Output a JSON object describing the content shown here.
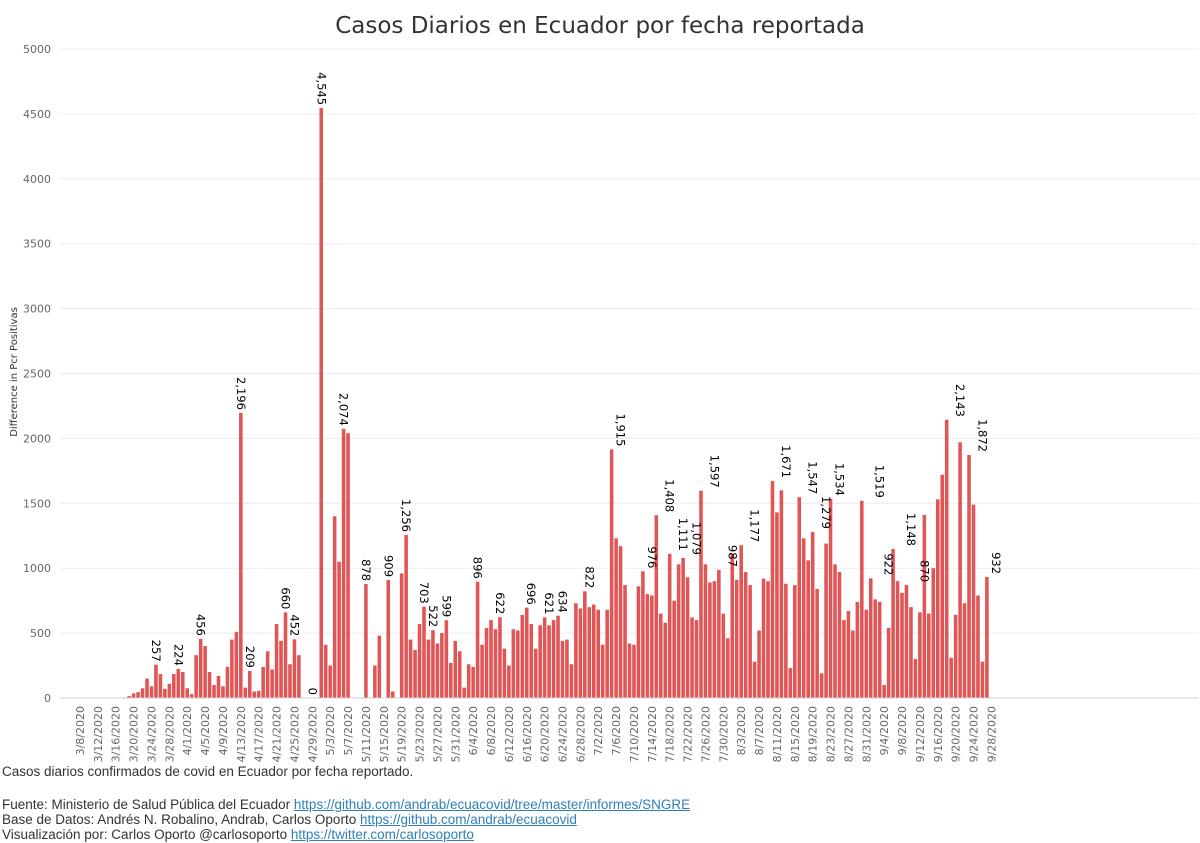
{
  "chart_data": {
    "type": "bar",
    "title": "Casos Diarios en Ecuador por fecha reportada",
    "ylabel": "Difference in Pcr Positivas",
    "xlabel": "",
    "ylim": [
      0,
      5000
    ],
    "yticks": [
      0,
      500,
      1000,
      1500,
      2000,
      2500,
      3000,
      3500,
      4000,
      4500,
      5000
    ],
    "start_date": "2020-03-08",
    "end_date": "2020-09-28",
    "bar_color": "#e05555",
    "x_tick_labels": [
      "3/8/2020",
      "3/12/2020",
      "3/16/2020",
      "3/20/2020",
      "3/24/2020",
      "3/28/2020",
      "4/1/2020",
      "4/5/2020",
      "4/9/2020",
      "4/13/2020",
      "4/17/2020",
      "4/21/2020",
      "4/25/2020",
      "4/29/2020",
      "5/3/2020",
      "5/7/2020",
      "5/11/2020",
      "5/15/2020",
      "5/19/2020",
      "5/23/2020",
      "5/27/2020",
      "5/31/2020",
      "6/4/2020",
      "6/8/2020",
      "6/12/2020",
      "6/16/2020",
      "6/20/2020",
      "6/24/2020",
      "6/28/2020",
      "7/2/2020",
      "7/6/2020",
      "7/10/2020",
      "7/14/2020",
      "7/18/2020",
      "7/22/2020",
      "7/26/2020",
      "7/30/2020",
      "8/3/2020",
      "8/7/2020",
      "8/11/2020",
      "8/15/2020",
      "8/19/2020",
      "8/23/2020",
      "8/27/2020",
      "8/31/2020",
      "9/4/2020",
      "9/8/2020",
      "9/12/2020",
      "9/16/2020",
      "9/20/2020",
      "9/24/2020",
      "9/28/2020"
    ],
    "values": [
      null,
      null,
      null,
      null,
      null,
      null,
      null,
      null,
      null,
      null,
      5,
      15,
      35,
      45,
      75,
      150,
      90,
      257,
      185,
      70,
      110,
      185,
      224,
      200,
      75,
      30,
      330,
      456,
      400,
      200,
      100,
      170,
      90,
      240,
      450,
      510,
      2196,
      80,
      209,
      50,
      55,
      240,
      360,
      220,
      570,
      440,
      660,
      260,
      452,
      330,
      null,
      null,
      0,
      null,
      4545,
      410,
      250,
      1400,
      1050,
      2074,
      2040,
      null,
      null,
      null,
      878,
      null,
      250,
      480,
      null,
      909,
      50,
      null,
      960,
      1256,
      450,
      370,
      570,
      703,
      450,
      522,
      420,
      500,
      599,
      270,
      440,
      360,
      80,
      260,
      240,
      896,
      410,
      540,
      600,
      530,
      622,
      380,
      250,
      530,
      520,
      640,
      696,
      570,
      380,
      560,
      621,
      560,
      600,
      634,
      440,
      450,
      260,
      730,
      690,
      822,
      700,
      720,
      680,
      410,
      680,
      1915,
      1230,
      1170,
      870,
      420,
      410,
      860,
      976,
      800,
      790,
      1408,
      650,
      580,
      1111,
      750,
      1030,
      1079,
      930,
      620,
      600,
      1597,
      1030,
      890,
      900,
      987,
      650,
      460,
      1110,
      910,
      1177,
      970,
      870,
      280,
      520,
      920,
      900,
      1671,
      1430,
      1600,
      880,
      230,
      870,
      1547,
      1230,
      1060,
      1279,
      840,
      190,
      1190,
      1534,
      1030,
      970,
      600,
      670,
      520,
      740,
      1519,
      680,
      922,
      760,
      740,
      100,
      540,
      1148,
      900,
      810,
      870,
      700,
      300,
      660,
      1410,
      650,
      1000,
      1530,
      1720,
      2143,
      310,
      640,
      1970,
      730,
      1872,
      1490,
      790,
      280,
      932,
      null,
      null,
      null,
      null,
      null,
      null,
      null,
      null,
      null
    ],
    "data_labels": [
      {
        "date": "3/25/2020",
        "value": 257,
        "text": "257"
      },
      {
        "date": "3/30/2020",
        "value": 224,
        "text": "224"
      },
      {
        "date": "4/4/2020",
        "value": 456,
        "text": "456"
      },
      {
        "date": "4/13/2020",
        "value": 2196,
        "text": "2,196"
      },
      {
        "date": "4/15/2020",
        "value": 209,
        "text": "209"
      },
      {
        "date": "4/23/2020",
        "value": 660,
        "text": "660"
      },
      {
        "date": "4/25/2020",
        "value": 452,
        "text": "452"
      },
      {
        "date": "4/29/2020",
        "value": 0,
        "text": "0"
      },
      {
        "date": "5/1/2020",
        "value": 4545,
        "text": "4,545"
      },
      {
        "date": "5/6/2020",
        "value": 2074,
        "text": "2,074"
      },
      {
        "date": "5/11/2020",
        "value": 878,
        "text": "878"
      },
      {
        "date": "5/16/2020",
        "value": 909,
        "text": "909"
      },
      {
        "date": "5/20/2020",
        "value": 1256,
        "text": "1,256"
      },
      {
        "date": "5/24/2020",
        "value": 703,
        "text": "703"
      },
      {
        "date": "5/26/2020",
        "value": 522,
        "text": "522"
      },
      {
        "date": "5/29/2020",
        "value": 599,
        "text": "599"
      },
      {
        "date": "6/5/2020",
        "value": 896,
        "text": "896"
      },
      {
        "date": "6/10/2020",
        "value": 622,
        "text": "622"
      },
      {
        "date": "6/17/2020",
        "value": 696,
        "text": "696"
      },
      {
        "date": "6/21/2020",
        "value": 621,
        "text": "621"
      },
      {
        "date": "6/24/2020",
        "value": 634,
        "text": "634"
      },
      {
        "date": "6/30/2020",
        "value": 822,
        "text": "822"
      },
      {
        "date": "7/7/2020",
        "value": 1915,
        "text": "1,915"
      },
      {
        "date": "7/14/2020",
        "value": 976,
        "text": "976"
      },
      {
        "date": "7/18/2020",
        "value": 1408,
        "text": "1,408"
      },
      {
        "date": "7/21/2020",
        "value": 1111,
        "text": "1,111"
      },
      {
        "date": "7/24/2020",
        "value": 1079,
        "text": "1,079"
      },
      {
        "date": "7/28/2020",
        "value": 1597,
        "text": "1,597"
      },
      {
        "date": "8/1/2020",
        "value": 987,
        "text": "987"
      },
      {
        "date": "8/6/2020",
        "value": 1177,
        "text": "1,177"
      },
      {
        "date": "8/13/2020",
        "value": 1671,
        "text": "1,671"
      },
      {
        "date": "8/19/2020",
        "value": 1547,
        "text": "1,547"
      },
      {
        "date": "8/22/2020",
        "value": 1279,
        "text": "1,279"
      },
      {
        "date": "8/25/2020",
        "value": 1534,
        "text": "1,534"
      },
      {
        "date": "9/3/2020",
        "value": 1519,
        "text": "1,519"
      },
      {
        "date": "9/5/2020",
        "value": 922,
        "text": "922"
      },
      {
        "date": "9/10/2020",
        "value": 1148,
        "text": "1,148"
      },
      {
        "date": "9/13/2020",
        "value": 870,
        "text": "870"
      },
      {
        "date": "9/21/2020",
        "value": 2143,
        "text": "2,143"
      },
      {
        "date": "9/26/2020",
        "value": 1872,
        "text": "1,872"
      },
      {
        "date": "9/29/2020",
        "value": 932,
        "text": "932"
      }
    ]
  },
  "footer": {
    "description": "Casos diarios confirmados de covid en Ecuador por fecha reportado.",
    "source_label": "Fuente: Ministerio de Salud Pública del Ecuador ",
    "source_link": "https://github.com/andrab/ecuacovid/tree/master/informes/SNGRE",
    "database_label": "Base de Datos: Andrés N. Robalino, Andrab, Carlos Oporto ",
    "database_link": "https://github.com/andrab/ecuacovid",
    "visualization_label": "Visualización por: Carlos Oporto @carlosoporto ",
    "visualization_link": "https://twitter.com/carlosoporto"
  }
}
